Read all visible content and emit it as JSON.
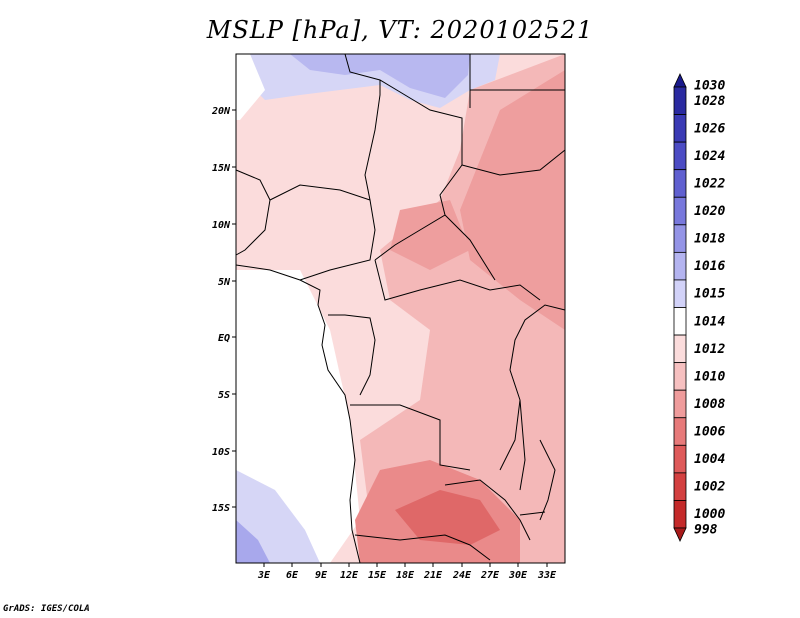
{
  "title": "MSLP [hPa], VT: 2020102521",
  "credit": "GrADS: IGES/COLA",
  "map": {
    "lat_ticks": [
      "20N",
      "15N",
      "10N",
      "5N",
      "EQ",
      "5S",
      "10S",
      "15S"
    ],
    "lon_ticks": [
      "3E",
      "6E",
      "9E",
      "12E",
      "15E",
      "18E",
      "21E",
      "24E",
      "27E",
      "30E",
      "33E"
    ]
  },
  "colorbar": {
    "labels": [
      "1030",
      "1028",
      "1026",
      "1024",
      "1022",
      "1020",
      "1018",
      "1016",
      "1015",
      "1014",
      "1012",
      "1010",
      "1008",
      "1006",
      "1004",
      "1002",
      "1000",
      "998"
    ],
    "colors": [
      "#1a1a8c",
      "#2a2aa0",
      "#3a3ab4",
      "#4c4cc4",
      "#6060d0",
      "#7878dc",
      "#9494e6",
      "#b4b4f0",
      "#d2d2f8",
      "#ffffff",
      "#fbdcdc",
      "#f6c0c0",
      "#ef9c9c",
      "#e77a7a",
      "#de5a5a",
      "#d34040",
      "#c42a2a",
      "#a81a1a"
    ]
  }
}
